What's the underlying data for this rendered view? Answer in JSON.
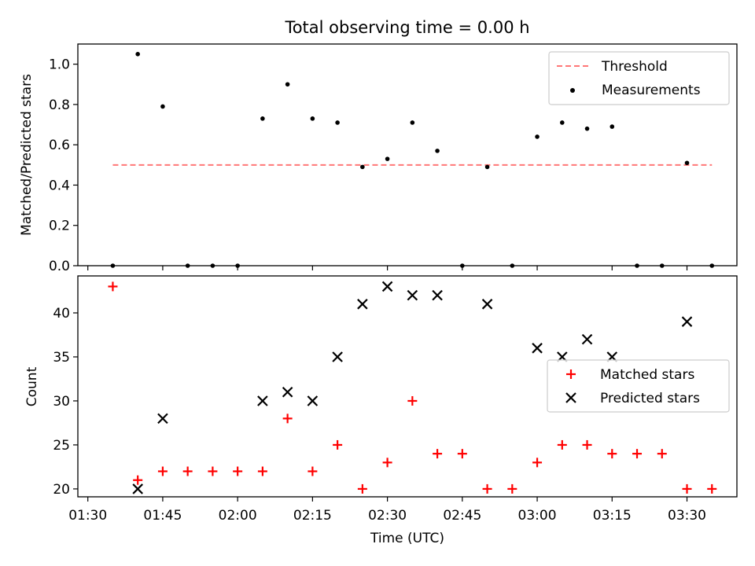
{
  "chart_data": [
    {
      "type": "scatter",
      "title": "Total observing time = 0.00 h",
      "ylabel": "Matched/Predicted stars",
      "xlabel": "",
      "xlim": [
        "01:28",
        "03:40"
      ],
      "ylim": [
        0,
        1.1
      ],
      "yticks": [
        0.0,
        0.2,
        0.4,
        0.6,
        0.8,
        1.0
      ],
      "ytick_labels": [
        "0.0",
        "0.2",
        "0.4",
        "0.6",
        "0.8",
        "1.0"
      ],
      "xticks": [
        "01:30",
        "01:45",
        "02:00",
        "02:15",
        "02:30",
        "02:45",
        "03:00",
        "03:15",
        "03:30"
      ],
      "legend_position": "upper right",
      "grid": false,
      "series": [
        {
          "name": "Threshold",
          "kind": "dashed-line",
          "color": "#ff7777",
          "x": [
            "01:35",
            "03:35"
          ],
          "y": [
            0.5,
            0.5
          ]
        },
        {
          "name": "Measurements",
          "kind": "dot",
          "color": "#000000",
          "x": [
            "01:35",
            "01:40",
            "01:45",
            "01:50",
            "01:55",
            "02:00",
            "02:05",
            "02:10",
            "02:15",
            "02:20",
            "02:25",
            "02:30",
            "02:35",
            "02:40",
            "02:45",
            "02:50",
            "02:55",
            "03:00",
            "03:05",
            "03:10",
            "03:15",
            "03:20",
            "03:25",
            "03:30",
            "03:35"
          ],
          "y": [
            0.0,
            1.05,
            0.79,
            0.0,
            0.0,
            0.0,
            0.73,
            0.9,
            0.73,
            0.71,
            0.49,
            0.53,
            0.71,
            0.57,
            0.0,
            0.49,
            0.0,
            0.64,
            0.71,
            0.68,
            0.69,
            0.0,
            0.0,
            0.51,
            0.0
          ]
        }
      ]
    },
    {
      "type": "scatter",
      "title": "",
      "xlabel": "Time (UTC)",
      "ylabel": "Count",
      "xlim": [
        "01:28",
        "03:40"
      ],
      "ylim": [
        19.1,
        44.2
      ],
      "yticks": [
        20,
        25,
        30,
        35,
        40
      ],
      "ytick_labels": [
        "20",
        "25",
        "30",
        "35",
        "40"
      ],
      "xticks": [
        "01:30",
        "01:45",
        "02:00",
        "02:15",
        "02:30",
        "02:45",
        "03:00",
        "03:15",
        "03:30"
      ],
      "xtick_labels": [
        "01:30",
        "01:45",
        "02:00",
        "02:15",
        "02:30",
        "02:45",
        "03:00",
        "03:15",
        "03:30"
      ],
      "legend_position": "center right",
      "grid": false,
      "series": [
        {
          "name": "Matched stars",
          "kind": "plus",
          "color": "#ff0000",
          "x": [
            "01:35",
            "01:40",
            "01:45",
            "01:50",
            "01:55",
            "02:00",
            "02:05",
            "02:10",
            "02:15",
            "02:20",
            "02:25",
            "02:30",
            "02:35",
            "02:40",
            "02:45",
            "02:50",
            "02:55",
            "03:00",
            "03:05",
            "03:10",
            "03:15",
            "03:20",
            "03:25",
            "03:30",
            "03:35"
          ],
          "y": [
            43,
            21,
            22,
            22,
            22,
            22,
            22,
            28,
            22,
            25,
            20,
            23,
            30,
            24,
            24,
            20,
            20,
            23,
            25,
            25,
            24,
            24,
            24,
            20,
            20
          ]
        },
        {
          "name": "Predicted stars",
          "kind": "cross",
          "color": "#000000",
          "x": [
            "01:40",
            "01:45",
            "02:05",
            "02:10",
            "02:15",
            "02:20",
            "02:25",
            "02:30",
            "02:35",
            "02:40",
            "02:50",
            "03:00",
            "03:05",
            "03:10",
            "03:15",
            "03:30"
          ],
          "y": [
            20,
            28,
            30,
            31,
            30,
            35,
            41,
            43,
            42,
            42,
            41,
            36,
            35,
            37,
            35,
            39
          ]
        }
      ]
    }
  ]
}
